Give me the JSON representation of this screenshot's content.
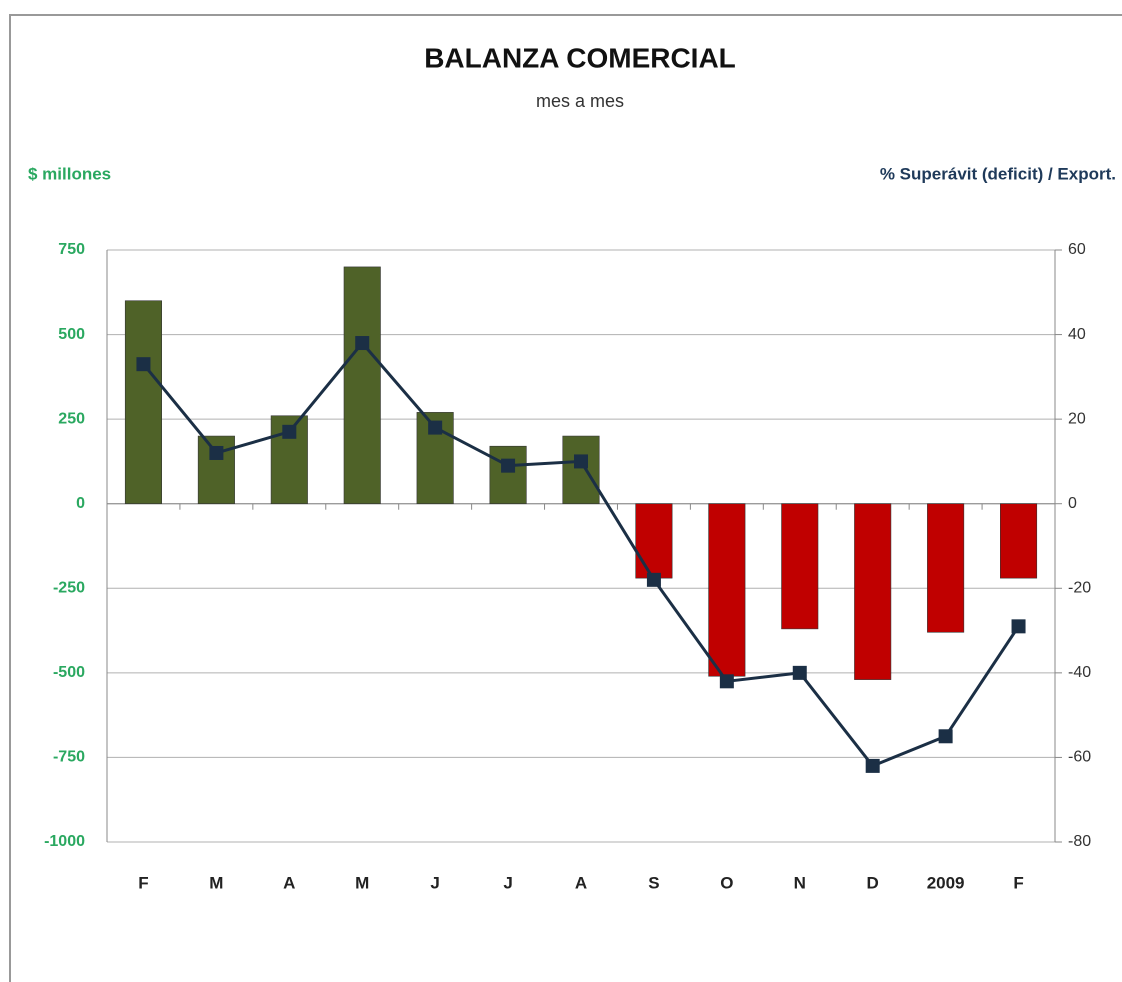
{
  "chart_data": {
    "type": "bar",
    "title": "BALANZA COMERCIAL",
    "subtitle": "mes a mes",
    "y_label": "$ millones",
    "y2_label": "% Superávit (deficit) / Export.",
    "categories": [
      "F",
      "M",
      "A",
      "M",
      "J",
      "J",
      "A",
      "S",
      "O",
      "N",
      "D",
      "2009",
      "F"
    ],
    "series": [
      {
        "type": "bar",
        "positive_color": "#4f6228",
        "negative_color": "#c00000",
        "values": [
          600,
          200,
          260,
          700,
          270,
          170,
          200,
          -220,
          -510,
          -370,
          -520,
          -380,
          -220
        ]
      },
      {
        "type": "line",
        "axis": "y2",
        "color": "#1b2f45",
        "values": [
          33,
          12,
          17,
          38,
          18,
          9,
          10,
          -18,
          -42,
          -40,
          -62,
          -55,
          -29
        ]
      }
    ],
    "ylim": [
      -1000,
      750
    ],
    "yticks": [
      -1000,
      -750,
      -500,
      -250,
      0,
      250,
      500,
      750
    ],
    "y2lim": [
      -80,
      60
    ],
    "y2ticks": [
      -80,
      -60,
      -40,
      -20,
      0,
      20,
      40,
      60
    ],
    "grid": true
  }
}
